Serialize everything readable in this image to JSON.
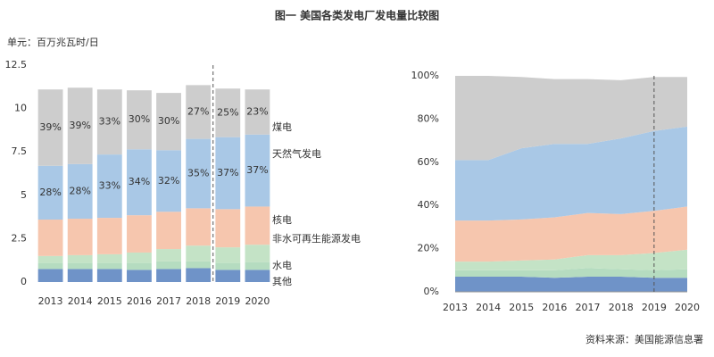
{
  "title": "图一  美国各类发电厂发电量比较图",
  "source": "资料来源：美国能源信息署",
  "chart_data": [
    {
      "type": "bar",
      "stacked": true,
      "ylabel": "单元：百万兆瓦时/日",
      "categories": [
        "2013",
        "2014",
        "2015",
        "2016",
        "2017",
        "2018",
        "2019",
        "2020"
      ],
      "ylim": [
        0,
        12.5
      ],
      "yticks": [
        0,
        2.5,
        5,
        7.5,
        10,
        12.5
      ],
      "series": [
        {
          "name": "其他",
          "color": "#6f93c8",
          "values": [
            0.75,
            0.75,
            0.75,
            0.7,
            0.75,
            0.8,
            0.7,
            0.7
          ]
        },
        {
          "name": "水电",
          "color": "#b5dcc0",
          "values": [
            0.35,
            0.35,
            0.35,
            0.4,
            0.45,
            0.4,
            0.4,
            0.45
          ]
        },
        {
          "name": "非水可再生能源发电",
          "color": "#c4e3c6",
          "values": [
            0.4,
            0.45,
            0.5,
            0.6,
            0.7,
            0.9,
            0.9,
            1.0
          ]
        },
        {
          "name": "核电",
          "color": "#f6c6ae",
          "values": [
            2.1,
            2.1,
            2.1,
            2.15,
            2.15,
            2.15,
            2.2,
            2.2
          ]
        },
        {
          "name": "天然气发电",
          "color": "#a9c8e6",
          "values": [
            3.1,
            3.15,
            3.65,
            3.8,
            3.55,
            4.0,
            4.15,
            4.15
          ],
          "share_labels": [
            "28%",
            "28%",
            "33%",
            "34%",
            "32%",
            "35%",
            "37%",
            "37%"
          ]
        },
        {
          "name": "煤电",
          "color": "#cdcdcd",
          "values": [
            4.4,
            4.4,
            3.75,
            3.4,
            3.3,
            3.1,
            2.8,
            2.6
          ],
          "share_labels": [
            "39%",
            "39%",
            "33%",
            "30%",
            "30%",
            "27%",
            "25%",
            "23%"
          ]
        }
      ]
    },
    {
      "type": "area",
      "stacked": true,
      "categories": [
        "2013",
        "2014",
        "2015",
        "2016",
        "2017",
        "2018",
        "2019",
        "2020"
      ],
      "ylim": [
        0,
        100
      ],
      "yticks": [
        {
          "value": 0,
          "label": "0%"
        },
        {
          "value": 20,
          "label": "20%"
        },
        {
          "value": 40,
          "label": "40%"
        },
        {
          "value": 60,
          "label": "60%"
        },
        {
          "value": 80,
          "label": "80%"
        },
        {
          "value": 100,
          "label": "100%"
        }
      ],
      "series": [
        {
          "color": "#6f93c8",
          "values": [
            7,
            7,
            7,
            6.5,
            7,
            7,
            6.5,
            6.5
          ]
        },
        {
          "color": "#b5dcc0",
          "values": [
            3,
            3,
            3,
            3.5,
            4,
            3.5,
            3.5,
            4
          ]
        },
        {
          "color": "#c4e3c6",
          "values": [
            4,
            4,
            4.5,
            5,
            6,
            6.5,
            8,
            9
          ]
        },
        {
          "color": "#f6c6ae",
          "values": [
            19,
            19,
            19,
            19.5,
            19.5,
            19,
            19.5,
            20
          ]
        },
        {
          "color": "#a9c8e6",
          "values": [
            28,
            28,
            33,
            34,
            32,
            35,
            37,
            37
          ]
        },
        {
          "color": "#cdcdcd",
          "values": [
            39,
            39,
            33,
            30,
            30,
            27,
            25,
            23
          ]
        }
      ]
    }
  ]
}
